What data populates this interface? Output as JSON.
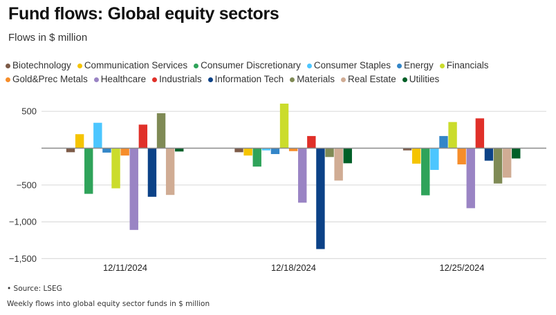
{
  "chart_data": {
    "type": "bar",
    "title": "Fund flows: Global equity sectors",
    "subtitle": "Flows in $ million",
    "xlabel": "",
    "ylabel": "",
    "ylim": [
      -1500,
      650
    ],
    "yticks": [
      500,
      0,
      -500,
      -1000,
      -1500
    ],
    "ytick_labels": [
      "500",
      "",
      "−500",
      "−1,000",
      "−1,500"
    ],
    "grid": true,
    "legend_position": "top",
    "categories": [
      "12/11/2024",
      "12/18/2024",
      "12/25/2024"
    ],
    "series": [
      {
        "name": "Biotechnology",
        "color": "#7d5b48",
        "values": [
          -55,
          -55,
          -30
        ]
      },
      {
        "name": "Communication Services",
        "color": "#f5c400",
        "values": [
          190,
          -100,
          -210
        ]
      },
      {
        "name": "Consumer Discretionary",
        "color": "#2fa35a",
        "values": [
          -620,
          -250,
          -640
        ]
      },
      {
        "name": "Consumer Staples",
        "color": "#4cc6ff",
        "values": [
          345,
          -30,
          -295
        ]
      },
      {
        "name": "Energy",
        "color": "#3386c8",
        "values": [
          -60,
          -80,
          165
        ]
      },
      {
        "name": "Financials",
        "color": "#cbdc2c",
        "values": [
          -545,
          605,
          355
        ]
      },
      {
        "name": "Gold&Prec Metals",
        "color": "#f68d2a",
        "values": [
          -100,
          -40,
          -220
        ]
      },
      {
        "name": "Healthcare",
        "color": "#9a84c4",
        "values": [
          -1110,
          -740,
          -815
        ]
      },
      {
        "name": "Industrials",
        "color": "#e03029",
        "values": [
          320,
          165,
          405
        ]
      },
      {
        "name": "Information Tech",
        "color": "#0c4287",
        "values": [
          -660,
          -1370,
          -170
        ]
      },
      {
        "name": "Materials",
        "color": "#7f8a55",
        "values": [
          475,
          -120,
          -480
        ]
      },
      {
        "name": "Real Estate",
        "color": "#d0ac94",
        "values": [
          -635,
          -440,
          -400
        ]
      },
      {
        "name": "Utilities",
        "color": "#005f27",
        "values": [
          -45,
          -205,
          -140
        ]
      }
    ]
  },
  "legend_rows": [
    [
      0,
      1,
      2,
      3,
      4,
      5
    ],
    [
      6,
      7,
      8,
      9,
      10,
      11,
      12
    ]
  ],
  "footer": {
    "source": "• Source: LSEG",
    "note": "Weekly flows into global equity sector funds in $ million"
  }
}
